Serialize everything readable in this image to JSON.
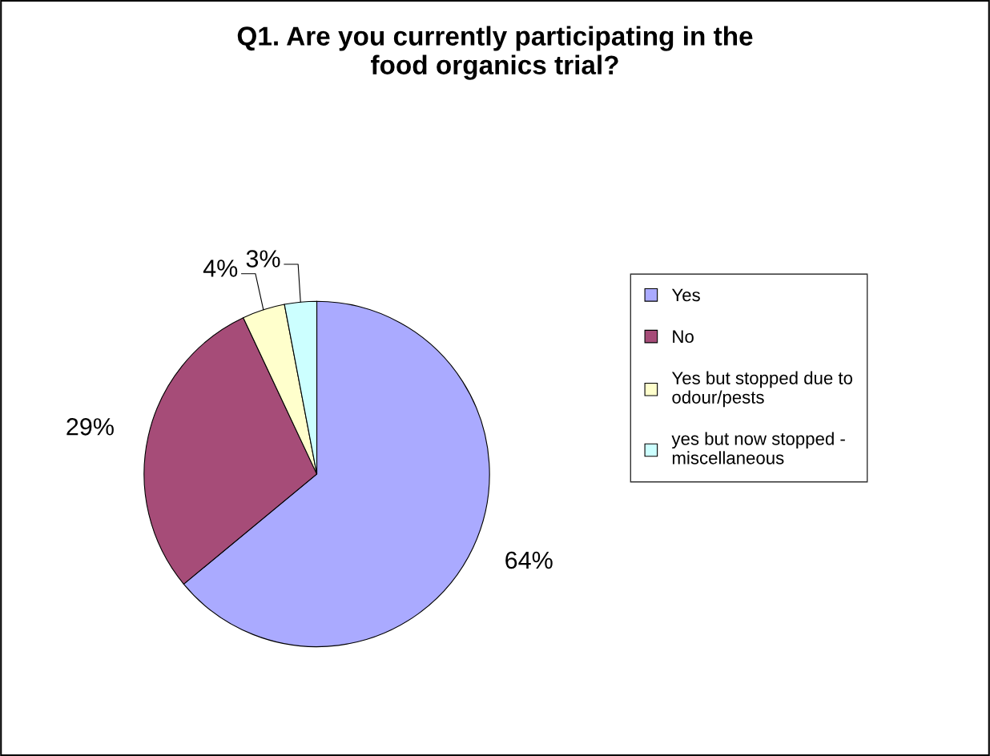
{
  "chart_data": {
    "type": "pie",
    "title": "Q1. Are you currently participating in the\nfood organics trial?",
    "categories": [
      "Yes",
      "No",
      "Yes but stopped due to\nodour/pests",
      "yes but now stopped -\nmiscellaneous"
    ],
    "values": [
      64,
      29,
      4,
      3
    ],
    "colors": [
      "#aaaaff",
      "#a64c78",
      "#ffffcc",
      "#ccffff"
    ],
    "value_labels": [
      "64%",
      "29%",
      "4%",
      "3%"
    ],
    "legend": "right"
  }
}
